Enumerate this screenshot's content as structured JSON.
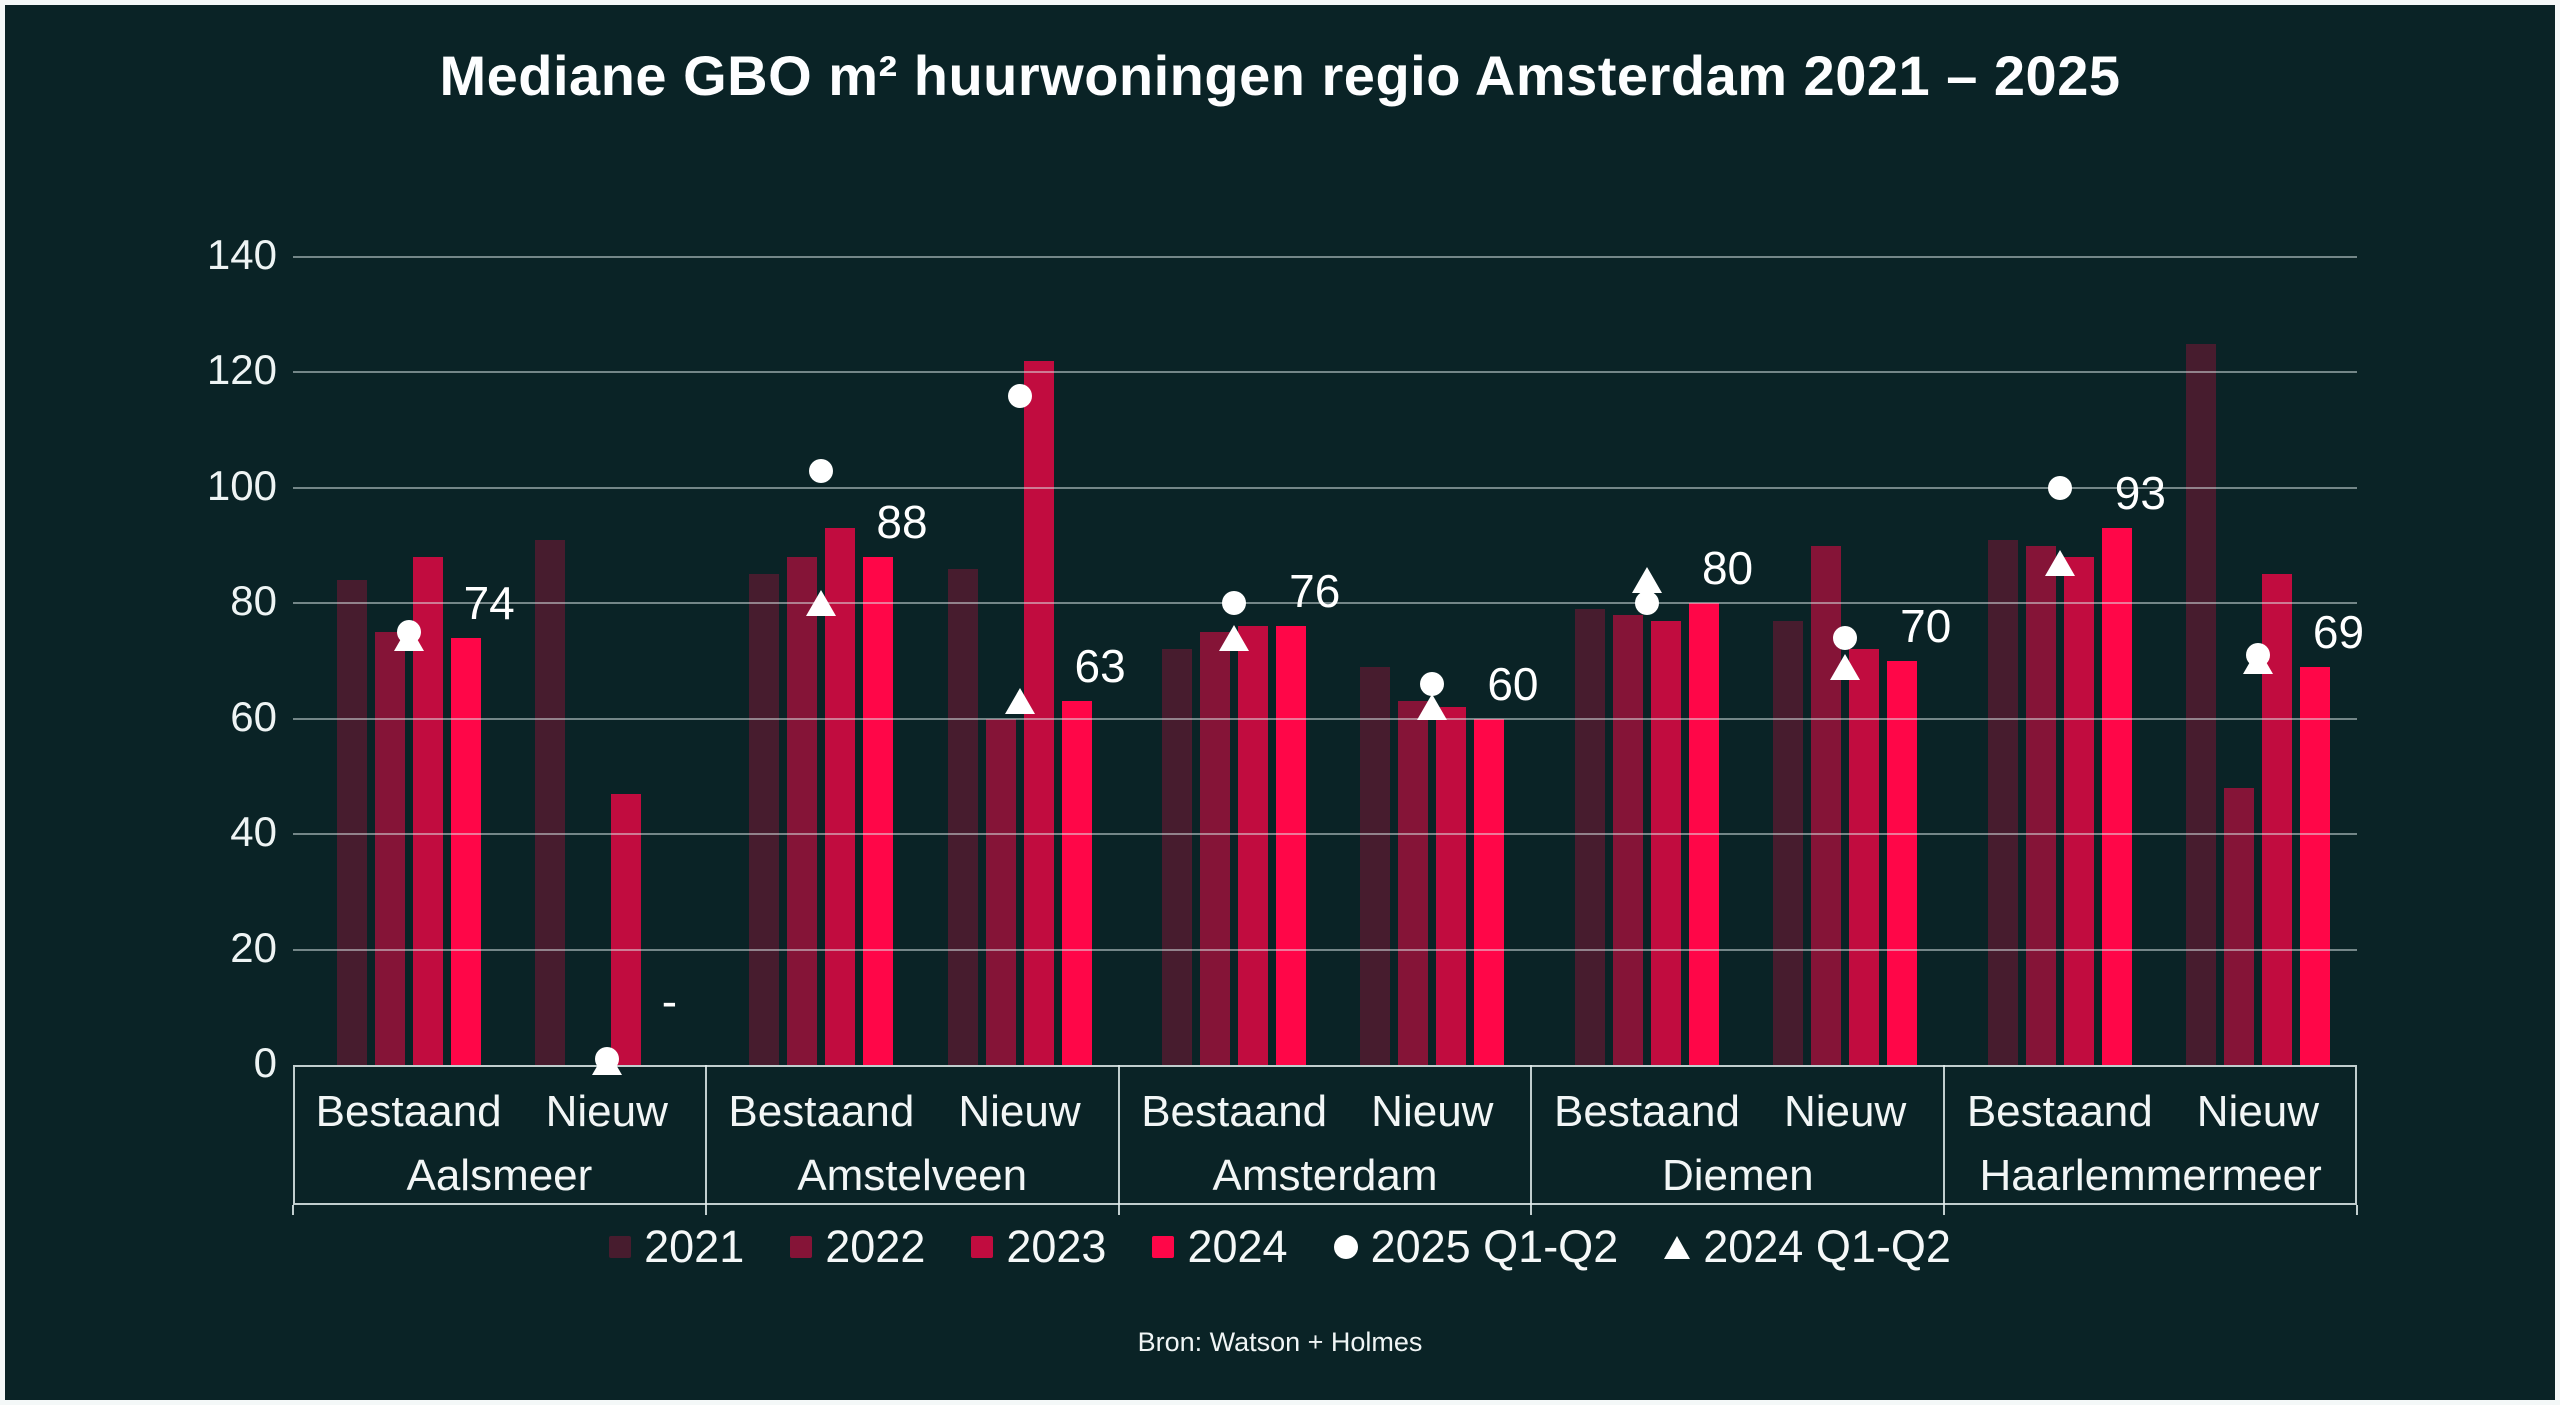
{
  "title": "Mediane GBO m² huurwoningen regio Amsterdam 2021 – 2025",
  "source": "Bron: Watson + Holmes",
  "colors": {
    "background": "#0a2326",
    "frame_border": "#f4f8f8",
    "accent_2024": "#ff0648",
    "bar_2021": "#451b2f",
    "bar_2022": "#851437",
    "bar_2023": "#c30b3f",
    "marker_white": "#ffffff",
    "gridline": "rgba(222,234,234,0.5)",
    "text": "#f2f6f6"
  },
  "chart_data": {
    "type": "bar",
    "title": "Mediane GBO m² huurwoningen regio Amsterdam 2021 – 2025",
    "xlabel": "",
    "ylabel": "",
    "ylim": [
      0,
      140
    ],
    "yticks": [
      0,
      20,
      40,
      60,
      80,
      100,
      120,
      140
    ],
    "grid": true,
    "legend_position": "bottom",
    "series": [
      {
        "name": "2021",
        "swatch": "rect",
        "color": "rgba(255,6,72,0.25)"
      },
      {
        "name": "2022",
        "swatch": "rect",
        "color": "rgba(255,6,72,0.5)"
      },
      {
        "name": "2023",
        "swatch": "rect",
        "color": "rgba(255,6,72,0.75)"
      },
      {
        "name": "2024",
        "swatch": "rect",
        "color": "rgba(255,6,72,1)"
      },
      {
        "name": "2025 Q1-Q2",
        "swatch": "circle",
        "color": "#ffffff"
      },
      {
        "name": "2024 Q1-Q2",
        "swatch": "triangle",
        "color": "#ffffff"
      }
    ],
    "subgroup_labels": [
      "Bestaand",
      "Nieuw"
    ],
    "groups": [
      {
        "name": "Aalsmeer",
        "subgroups": [
          {
            "label": "Bestaand",
            "bars": [
              84,
              75,
              88,
              74
            ],
            "circle_2025q": 75,
            "triangle_2024q": 74,
            "data_label": "74",
            "label_anchor": 74
          },
          {
            "label": "Nieuw",
            "bars": [
              91,
              null,
              47,
              null
            ],
            "circle_2025q": 1,
            "triangle_2024q": 0.5,
            "data_label": "-",
            "label_anchor": 5
          }
        ]
      },
      {
        "name": "Amstelveen",
        "subgroups": [
          {
            "label": "Bestaand",
            "bars": [
              85,
              88,
              93,
              88
            ],
            "circle_2025q": 103,
            "triangle_2024q": 80,
            "data_label": "88",
            "label_anchor": 88
          },
          {
            "label": "Nieuw",
            "bars": [
              86,
              60,
              122,
              63
            ],
            "circle_2025q": 116,
            "triangle_2024q": 63,
            "data_label": "63",
            "label_anchor": 63
          }
        ]
      },
      {
        "name": "Amsterdam",
        "subgroups": [
          {
            "label": "Bestaand",
            "bars": [
              72,
              75,
              76,
              76
            ],
            "circle_2025q": 80,
            "triangle_2024q": 74,
            "data_label": "76",
            "label_anchor": 76
          },
          {
            "label": "Nieuw",
            "bars": [
              69,
              63,
              62,
              60
            ],
            "circle_2025q": 66,
            "triangle_2024q": 62,
            "data_label": "60",
            "label_anchor": 60
          }
        ]
      },
      {
        "name": "Diemen",
        "subgroups": [
          {
            "label": "Bestaand",
            "bars": [
              79,
              78,
              77,
              80
            ],
            "circle_2025q": 80,
            "triangle_2024q": 84,
            "data_label": "80",
            "label_anchor": 80
          },
          {
            "label": "Nieuw",
            "bars": [
              77,
              90,
              72,
              70
            ],
            "circle_2025q": 74,
            "triangle_2024q": 69,
            "data_label": "70",
            "label_anchor": 70
          }
        ]
      },
      {
        "name": "Haarlemmermeer",
        "subgroups": [
          {
            "label": "Bestaand",
            "bars": [
              91,
              90,
              88,
              93
            ],
            "circle_2025q": 100,
            "triangle_2024q": 87,
            "data_label": "93",
            "label_anchor": 93
          },
          {
            "label": "Nieuw",
            "bars": [
              125,
              48,
              85,
              69
            ],
            "circle_2025q": 71,
            "triangle_2024q": 70,
            "data_label": "69",
            "label_anchor": 69
          }
        ]
      }
    ]
  }
}
